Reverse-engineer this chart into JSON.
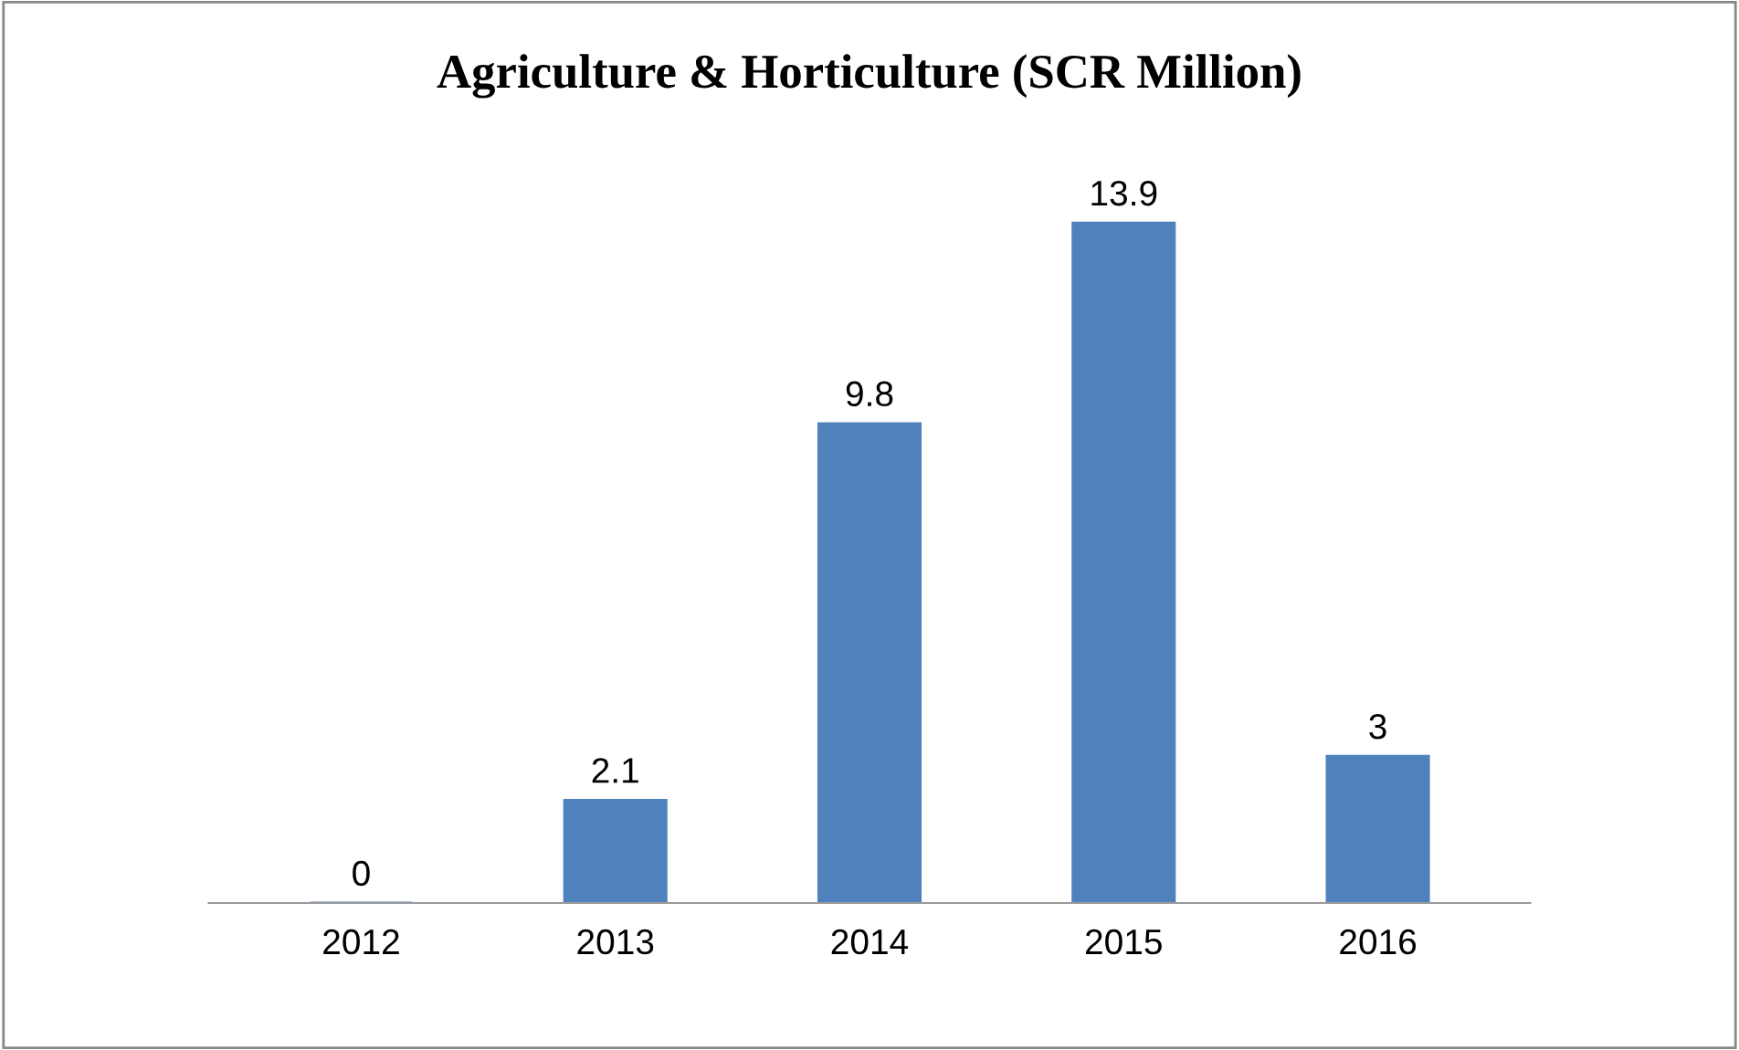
{
  "chart_data": {
    "type": "bar",
    "title": "Agriculture & Horticulture (SCR Million)",
    "categories": [
      "2012",
      "2013",
      "2014",
      "2015",
      "2016"
    ],
    "values": [
      0,
      2.1,
      9.8,
      13.9,
      3
    ],
    "color": "#4f81bd",
    "data_labels": true,
    "tick_labels": "x"
  }
}
